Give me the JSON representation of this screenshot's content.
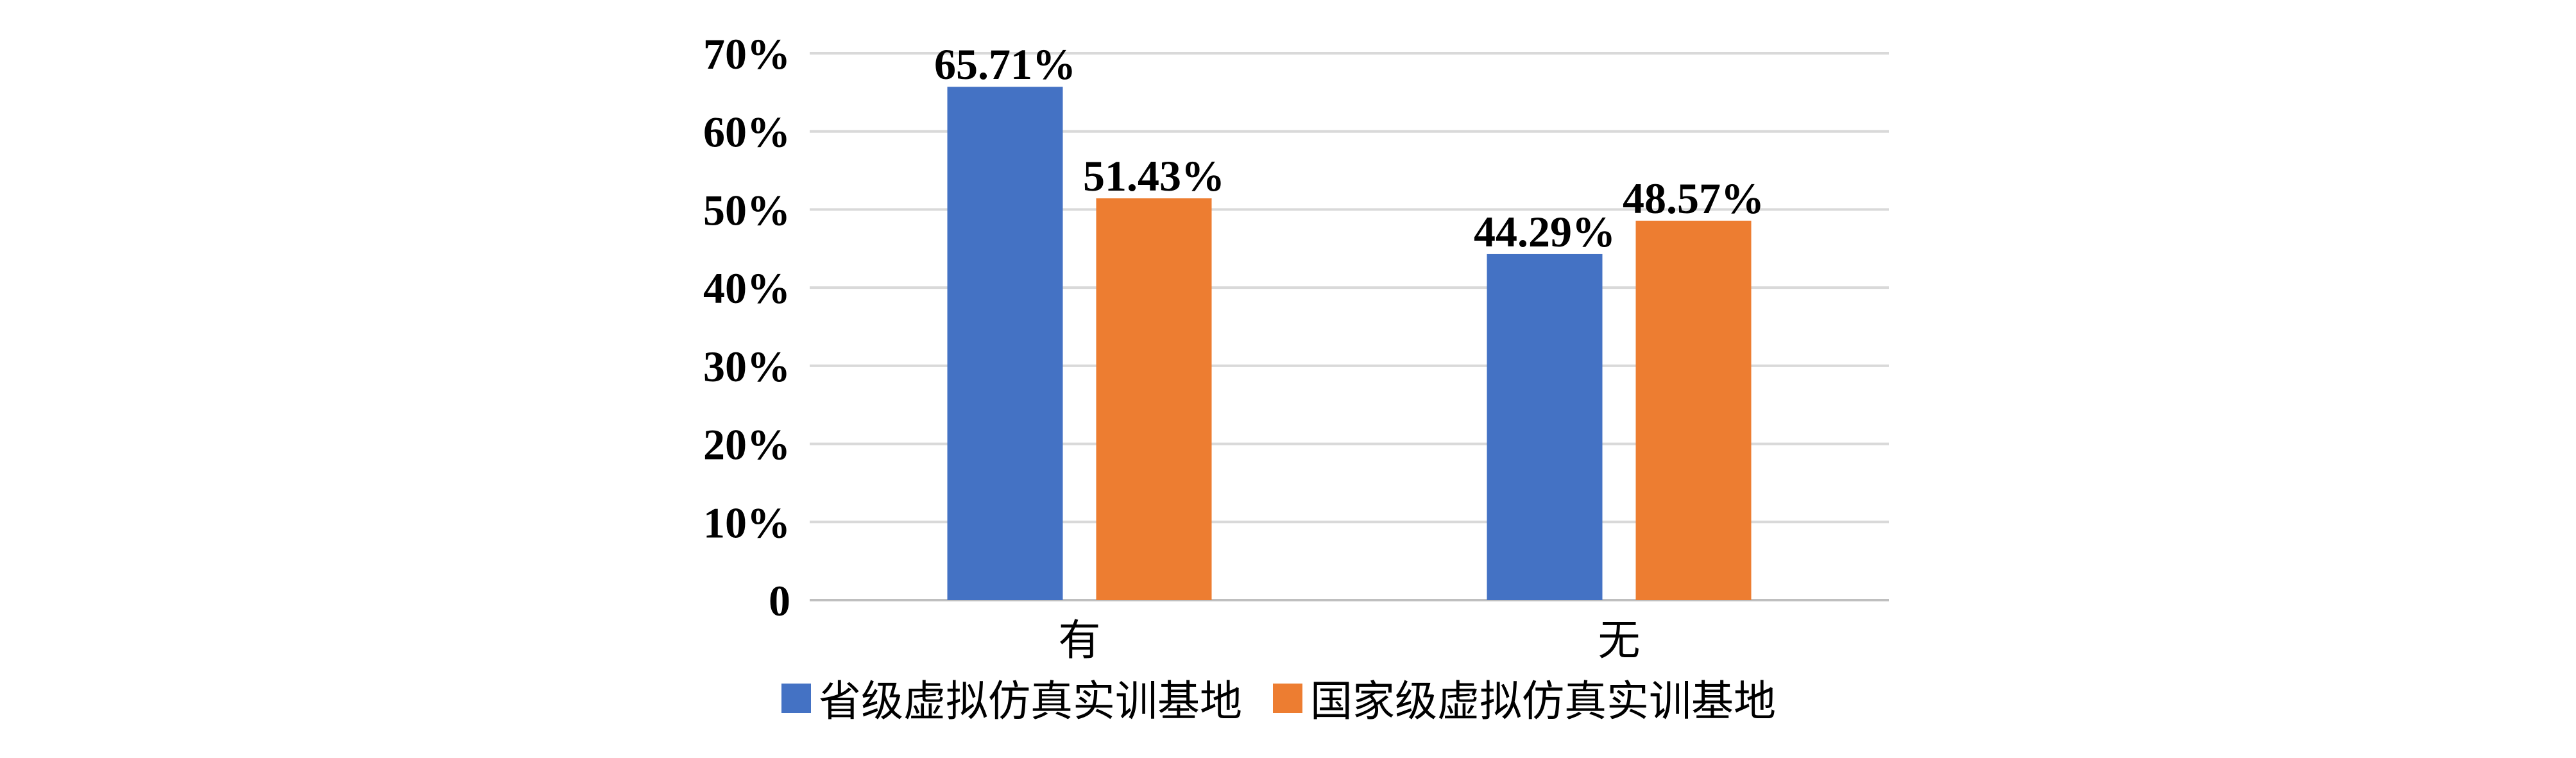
{
  "chart_data": {
    "type": "bar",
    "categories": [
      "有",
      "无"
    ],
    "series": [
      {
        "name": "省级虚拟仿真实训基地",
        "values": [
          65.71,
          44.29
        ],
        "labels": [
          "65.71%",
          "44.29%"
        ],
        "color": "#4472C4"
      },
      {
        "name": "国家级虚拟仿真实训基地",
        "values": [
          51.43,
          48.57
        ],
        "labels": [
          "51.43%",
          "48.57%"
        ],
        "color": "#ED7D31"
      }
    ],
    "yticks": [
      0,
      10,
      20,
      30,
      40,
      50,
      60,
      70
    ],
    "ytick_labels": [
      "0",
      "10%",
      "20%",
      "30%",
      "40%",
      "50%",
      "60%",
      "70%"
    ],
    "ylim": [
      0,
      70
    ],
    "grid": true,
    "legend": "bottom"
  }
}
